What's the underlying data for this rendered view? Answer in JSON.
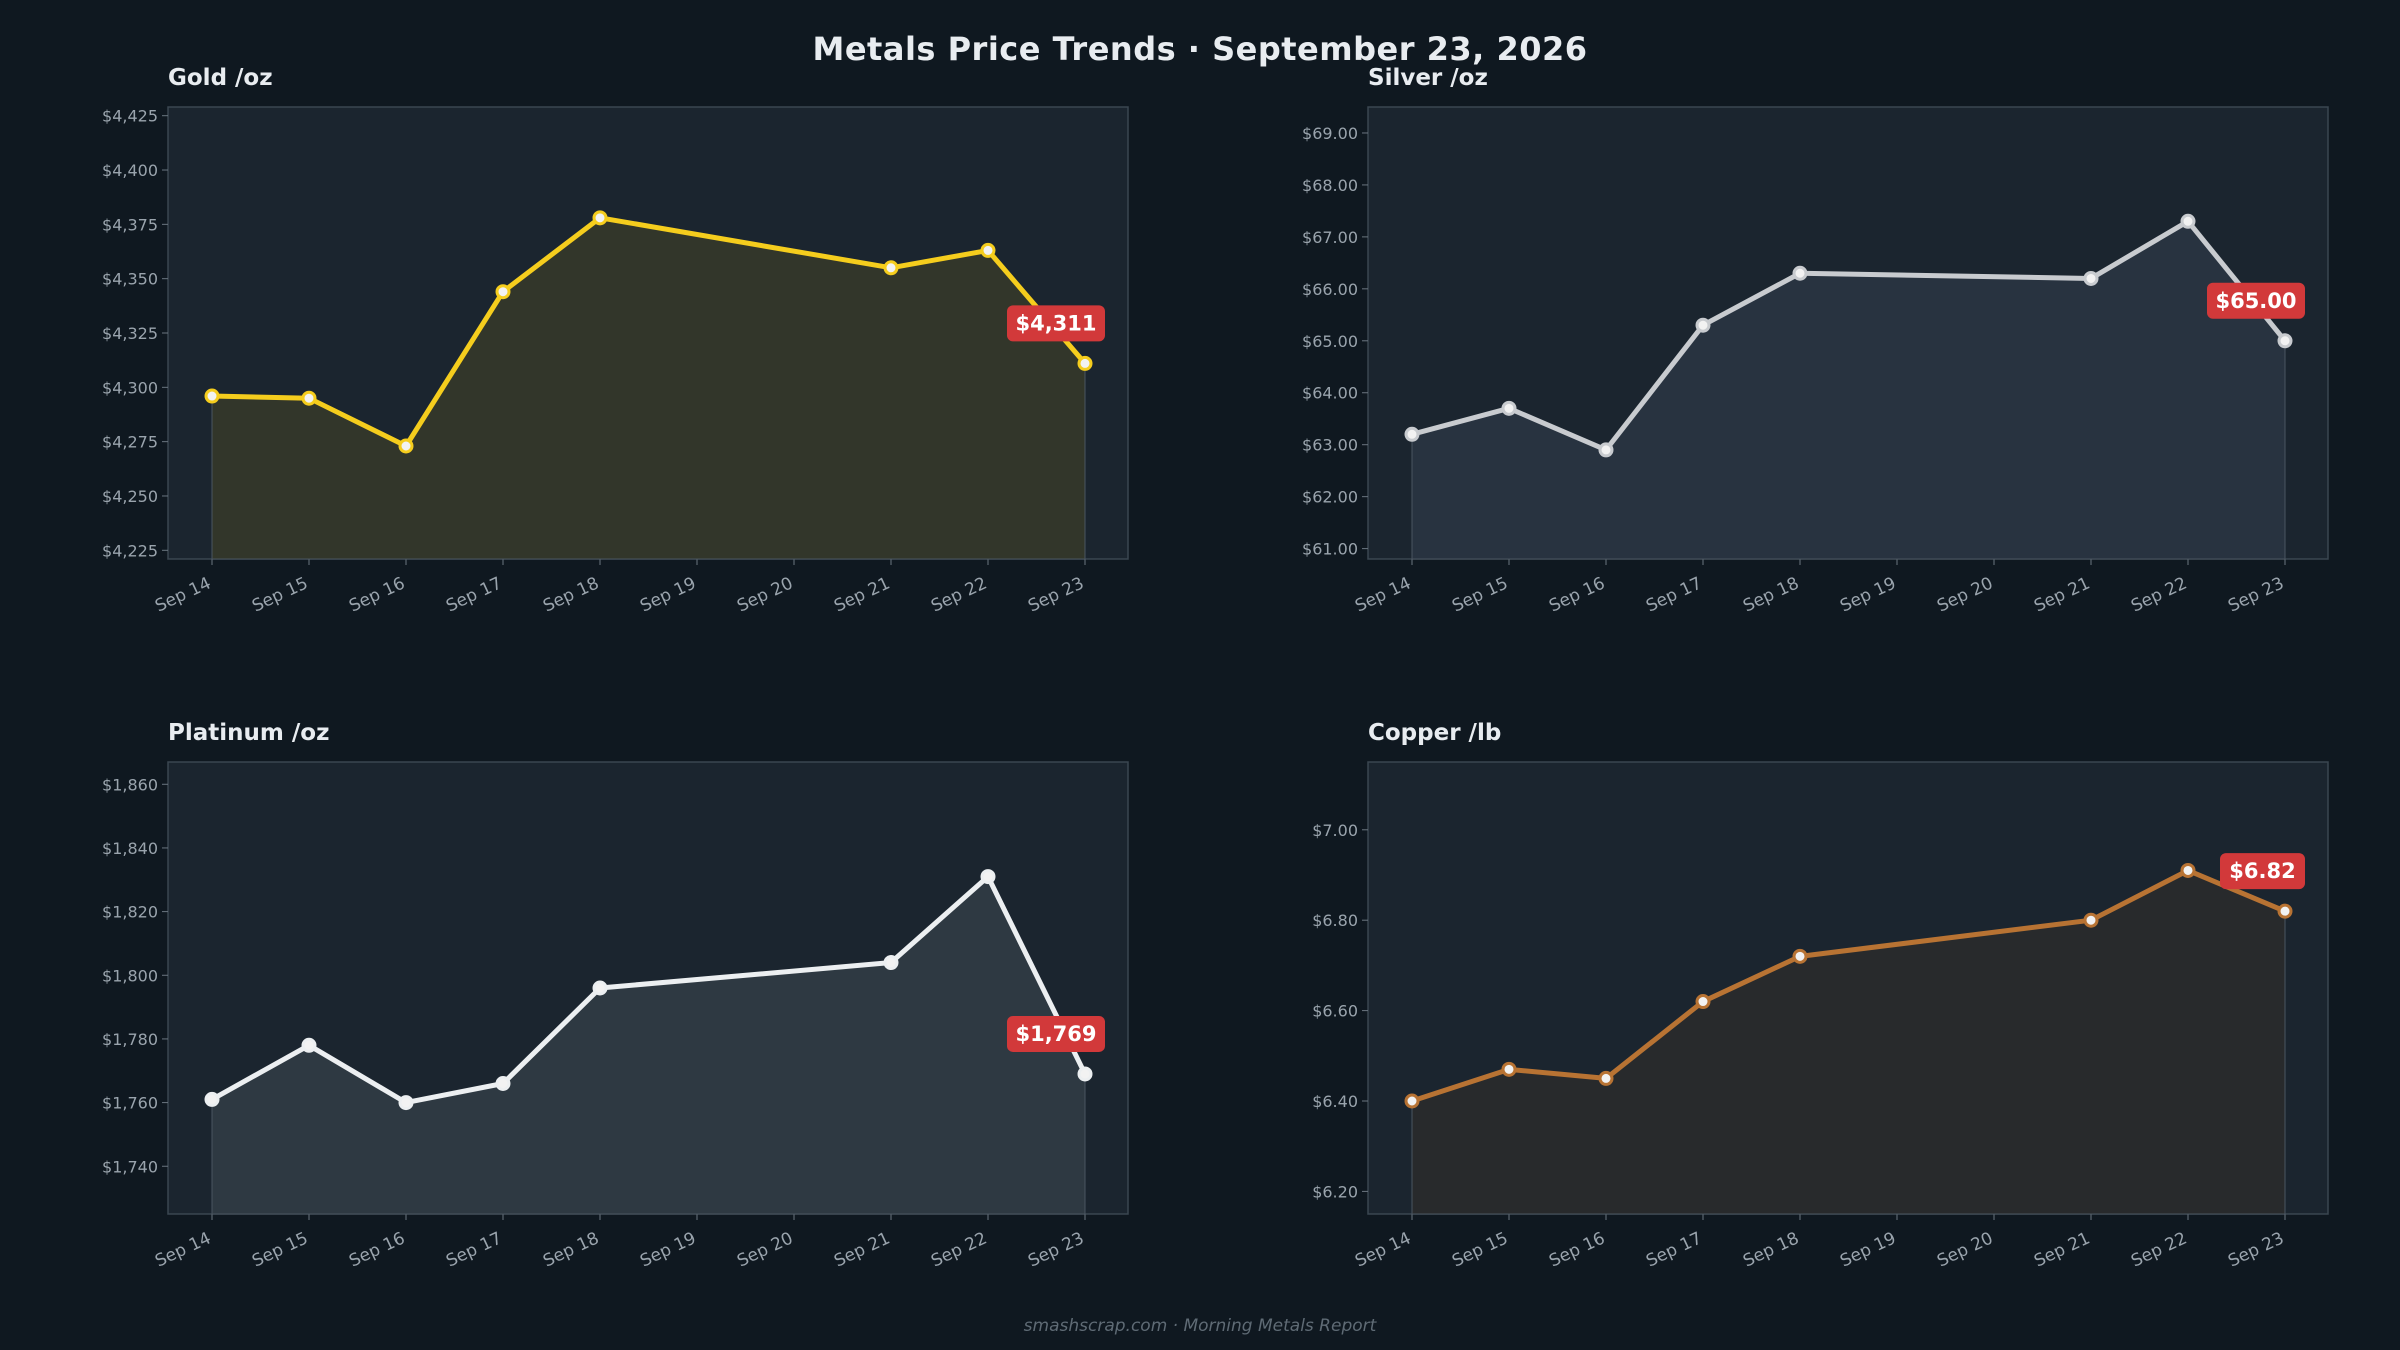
{
  "page": {
    "title": "Metals Price Trends  ·  September 23, 2026",
    "footer": "smashscrap.com  ·  Morning Metals Report"
  },
  "colors": {
    "background": "#0f1820",
    "plot_bg": "#1b252f",
    "badge": "#d2393a"
  },
  "chart_data": [
    {
      "type": "area",
      "title": "Gold  /oz",
      "x": [
        "Sep 14",
        "Sep 15",
        "Sep 16",
        "Sep 17",
        "Sep 18",
        "Sep 19",
        "Sep 20",
        "Sep 21",
        "Sep 22",
        "Sep 23"
      ],
      "series": [
        {
          "x": [
            "Sep 14",
            "Sep 15",
            "Sep 16",
            "Sep 17",
            "Sep 18",
            "Sep 21",
            "Sep 22",
            "Sep 23"
          ],
          "values": [
            4296,
            4295,
            4273,
            4344,
            4378,
            4355,
            4363,
            4311
          ],
          "color": "#f5cd1d",
          "fill": "#32362a"
        }
      ],
      "ylim": [
        4221,
        4429
      ],
      "yticks": [
        4225,
        4250,
        4275,
        4300,
        4325,
        4350,
        4375,
        4400,
        4425
      ],
      "ytick_labels": [
        "$4,225",
        "$4,250",
        "$4,275",
        "$4,300",
        "$4,325",
        "$4,350",
        "$4,375",
        "$4,400",
        "$4,425"
      ],
      "latest_label": "$4,311",
      "grid": false
    },
    {
      "type": "area",
      "title": "Silver  /oz",
      "x": [
        "Sep 14",
        "Sep 15",
        "Sep 16",
        "Sep 17",
        "Sep 18",
        "Sep 19",
        "Sep 20",
        "Sep 21",
        "Sep 22",
        "Sep 23"
      ],
      "series": [
        {
          "x": [
            "Sep 14",
            "Sep 15",
            "Sep 16",
            "Sep 17",
            "Sep 18",
            "Sep 21",
            "Sep 22",
            "Sep 23"
          ],
          "values": [
            63.2,
            63.7,
            62.9,
            65.3,
            66.3,
            66.2,
            67.3,
            65.0
          ],
          "color": "#c8cbcf",
          "fill": "#283340"
        }
      ],
      "ylim": [
        60.8,
        69.5
      ],
      "yticks": [
        61,
        62,
        63,
        64,
        65,
        66,
        67,
        68,
        69
      ],
      "ytick_labels": [
        "$61.00",
        "$62.00",
        "$63.00",
        "$64.00",
        "$65.00",
        "$66.00",
        "$67.00",
        "$68.00",
        "$69.00"
      ],
      "latest_label": "$65.00",
      "grid": false
    },
    {
      "type": "area",
      "title": "Platinum  /oz",
      "x": [
        "Sep 14",
        "Sep 15",
        "Sep 16",
        "Sep 17",
        "Sep 18",
        "Sep 19",
        "Sep 20",
        "Sep 21",
        "Sep 22",
        "Sep 23"
      ],
      "series": [
        {
          "x": [
            "Sep 14",
            "Sep 15",
            "Sep 16",
            "Sep 17",
            "Sep 18",
            "Sep 21",
            "Sep 22",
            "Sep 23"
          ],
          "values": [
            1761,
            1778,
            1760,
            1766,
            1796,
            1804,
            1831,
            1769
          ],
          "color": "#eceff1",
          "fill": "#2e3942"
        }
      ],
      "ylim": [
        1725,
        1867
      ],
      "yticks": [
        1740,
        1760,
        1780,
        1800,
        1820,
        1840,
        1860
      ],
      "ytick_labels": [
        "$1,740",
        "$1,760",
        "$1,780",
        "$1,800",
        "$1,820",
        "$1,840",
        "$1,860"
      ],
      "latest_label": "$1,769",
      "grid": false
    },
    {
      "type": "area",
      "title": "Copper  /lb",
      "x": [
        "Sep 14",
        "Sep 15",
        "Sep 16",
        "Sep 17",
        "Sep 18",
        "Sep 19",
        "Sep 20",
        "Sep 21",
        "Sep 22",
        "Sep 23"
      ],
      "series": [
        {
          "x": [
            "Sep 14",
            "Sep 15",
            "Sep 16",
            "Sep 17",
            "Sep 18",
            "Sep 21",
            "Sep 22",
            "Sep 23"
          ],
          "values": [
            6.4,
            6.47,
            6.45,
            6.62,
            6.72,
            6.8,
            6.91,
            6.82
          ],
          "color": "#b87333",
          "fill": "#282a2c"
        }
      ],
      "ylim": [
        6.15,
        7.15
      ],
      "yticks": [
        6.2,
        6.4,
        6.6,
        6.8,
        7.0
      ],
      "ytick_labels": [
        "$6.20",
        "$6.40",
        "$6.60",
        "$6.80",
        "$7.00"
      ],
      "latest_label": "$6.82",
      "grid": false
    }
  ]
}
